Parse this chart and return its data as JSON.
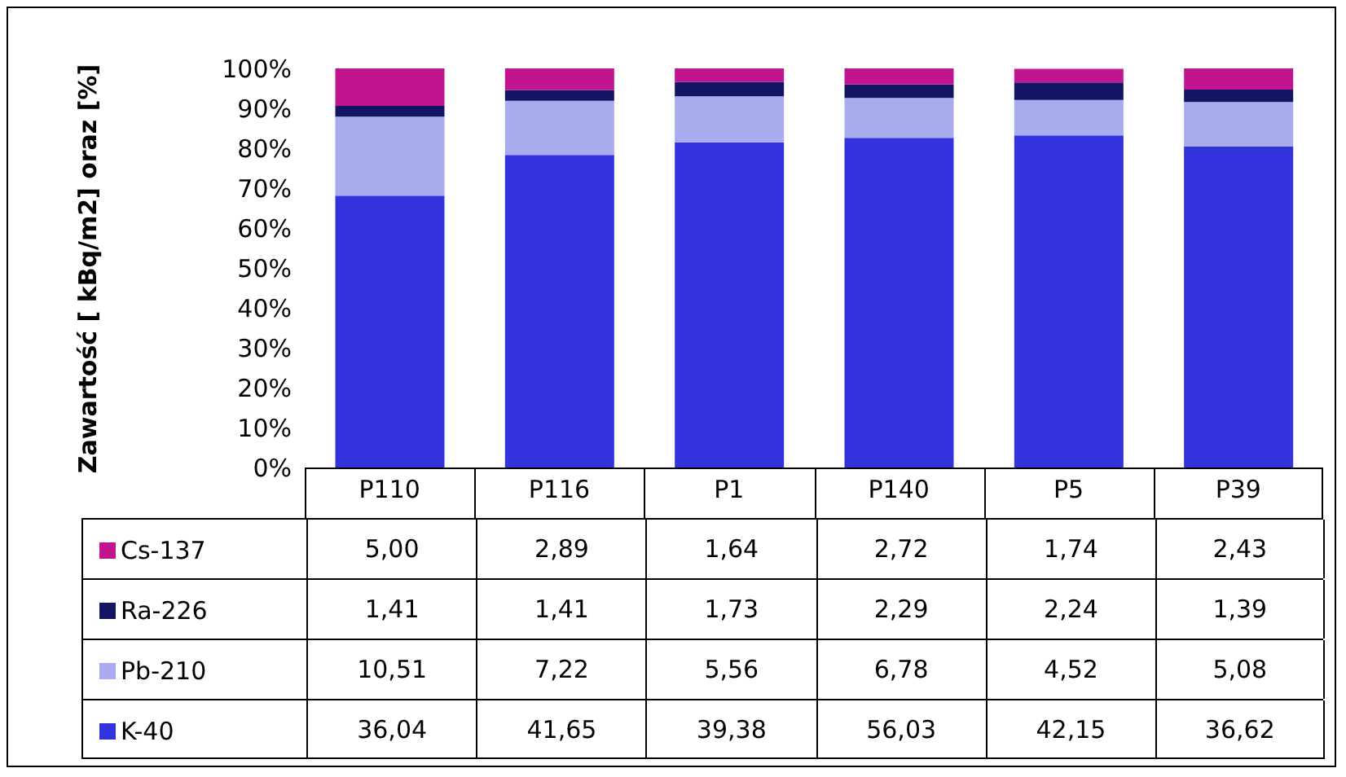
{
  "chart_data": {
    "type": "bar",
    "stacked": true,
    "ylabel": "Zawartość [ kBq/m2] oraz [%]",
    "categories": [
      "P110",
      "P116",
      "P1",
      "P140",
      "P5",
      "P39"
    ],
    "series": [
      {
        "name": "K-40",
        "color": "#3333dd",
        "values": [
          68.1,
          78.3,
          81.5,
          82.6,
          83.2,
          80.4
        ]
      },
      {
        "name": "Pb-210",
        "color": "#aaaaee",
        "values": [
          19.8,
          13.6,
          11.5,
          10.0,
          8.9,
          11.2
        ]
      },
      {
        "name": "Ra-226",
        "color": "#141464",
        "values": [
          2.7,
          2.7,
          3.6,
          3.4,
          4.4,
          3.1
        ]
      },
      {
        "name": "Cs-137",
        "color": "#c0158f",
        "values": [
          9.4,
          5.4,
          3.4,
          4.0,
          3.4,
          5.3
        ]
      }
    ],
    "annotations": [
      "36,04",
      "41,65",
      "39,38",
      "56,03",
      "42,15",
      "36,62",
      "10,51",
      "7,22",
      "5,56",
      "6,78",
      "4,52",
      "5,08",
      "1,41",
      "1,41",
      "1,73",
      "2,29",
      "2,24",
      "1,39",
      "5,00",
      "2,89",
      "1,64",
      "2,72",
      "1,74",
      "2,43"
    ],
    "ylim": [
      0,
      100
    ],
    "yticks": [
      {
        "value": 0,
        "label": "0%"
      },
      {
        "value": 10,
        "label": "10%"
      },
      {
        "value": 20,
        "label": "20%"
      },
      {
        "value": 30,
        "label": "30%"
      },
      {
        "value": 40,
        "label": "40%"
      },
      {
        "value": 50,
        "label": "50%"
      },
      {
        "value": 60,
        "label": "60%"
      },
      {
        "value": 70,
        "label": "70%"
      },
      {
        "value": 80,
        "label": "80%"
      },
      {
        "value": 90,
        "label": "90%"
      },
      {
        "value": 100,
        "label": "100%"
      }
    ],
    "grid": false,
    "legend": "left"
  }
}
